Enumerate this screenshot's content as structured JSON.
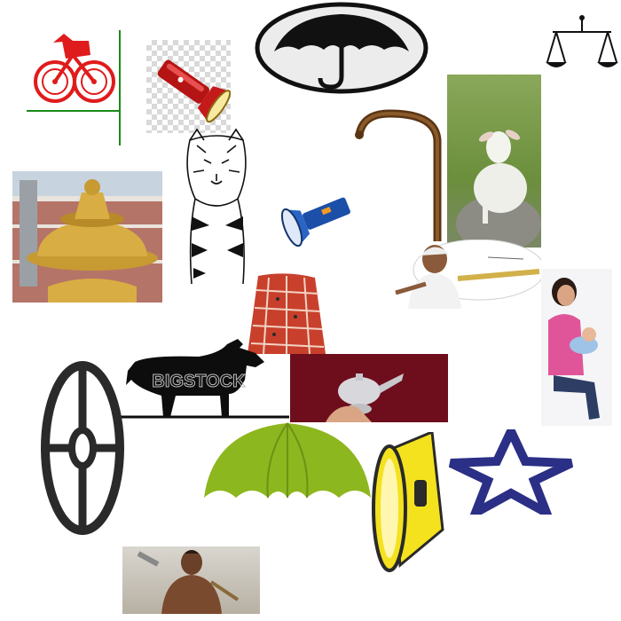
{
  "collage": {
    "tiles": [
      {
        "name": "bicycle-icon"
      },
      {
        "name": "torch-icon"
      },
      {
        "name": "umbrella-oval-icon"
      },
      {
        "name": "scales-icon"
      },
      {
        "name": "walking-stick-icon"
      },
      {
        "name": "lamb-photo"
      },
      {
        "name": "temple-kalash-photo"
      },
      {
        "name": "tiger-sketch"
      },
      {
        "name": "blue-torch-icon"
      },
      {
        "name": "farmer-photo"
      },
      {
        "name": "mother-child-photo"
      },
      {
        "name": "patterned-cloth-photo"
      },
      {
        "name": "goat-silhouette"
      },
      {
        "name": "silver-lamp-photo"
      },
      {
        "name": "wheel-icon"
      },
      {
        "name": "green-umbrella-icon"
      },
      {
        "name": "yellow-torch-icon"
      },
      {
        "name": "star-icon"
      },
      {
        "name": "labourer-photo"
      }
    ],
    "goat_watermark": "BIGSTOCK"
  }
}
